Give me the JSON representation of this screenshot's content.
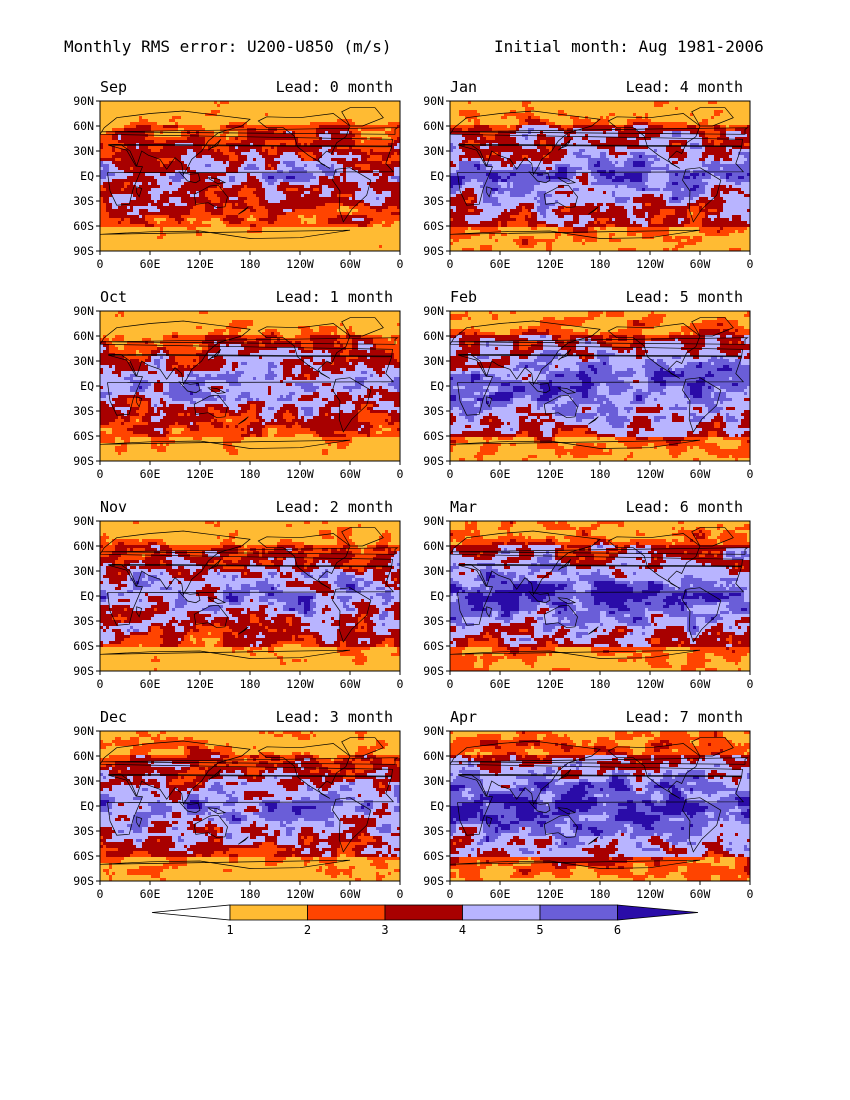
{
  "title_left": "Monthly RMS error: U200-U850 (m/s)",
  "title_right": "Initial month: Aug 1981-2006",
  "lon_ticks": [
    "0",
    "60E",
    "120E",
    "180",
    "120W",
    "60W",
    "0"
  ],
  "lat_ticks": [
    "90N",
    "60N",
    "30N",
    "EQ",
    "30S",
    "60S",
    "90S"
  ],
  "panels": [
    {
      "month": "Sep",
      "lead": "Lead: 0 month",
      "lead_months": 0
    },
    {
      "month": "Jan",
      "lead": "Lead: 4 month",
      "lead_months": 4
    },
    {
      "month": "Oct",
      "lead": "Lead: 1 month",
      "lead_months": 1
    },
    {
      "month": "Feb",
      "lead": "Lead: 5 month",
      "lead_months": 5
    },
    {
      "month": "Nov",
      "lead": "Lead: 2 month",
      "lead_months": 2
    },
    {
      "month": "Mar",
      "lead": "Lead: 6 month",
      "lead_months": 6
    },
    {
      "month": "Dec",
      "lead": "Lead: 3 month",
      "lead_months": 3
    },
    {
      "month": "Apr",
      "lead": "Lead: 7 month",
      "lead_months": 7
    }
  ],
  "colorbar": {
    "levels": [
      "1",
      "2",
      "3",
      "4",
      "5",
      "6"
    ],
    "colors": [
      "#ffffff",
      "#ffbb33",
      "#ff4400",
      "#a80000",
      "#b8b4ff",
      "#6a5ed8",
      "#2a0ca8"
    ]
  },
  "colors": {
    "land_outline": "#000000",
    "frame": "#000000"
  }
}
